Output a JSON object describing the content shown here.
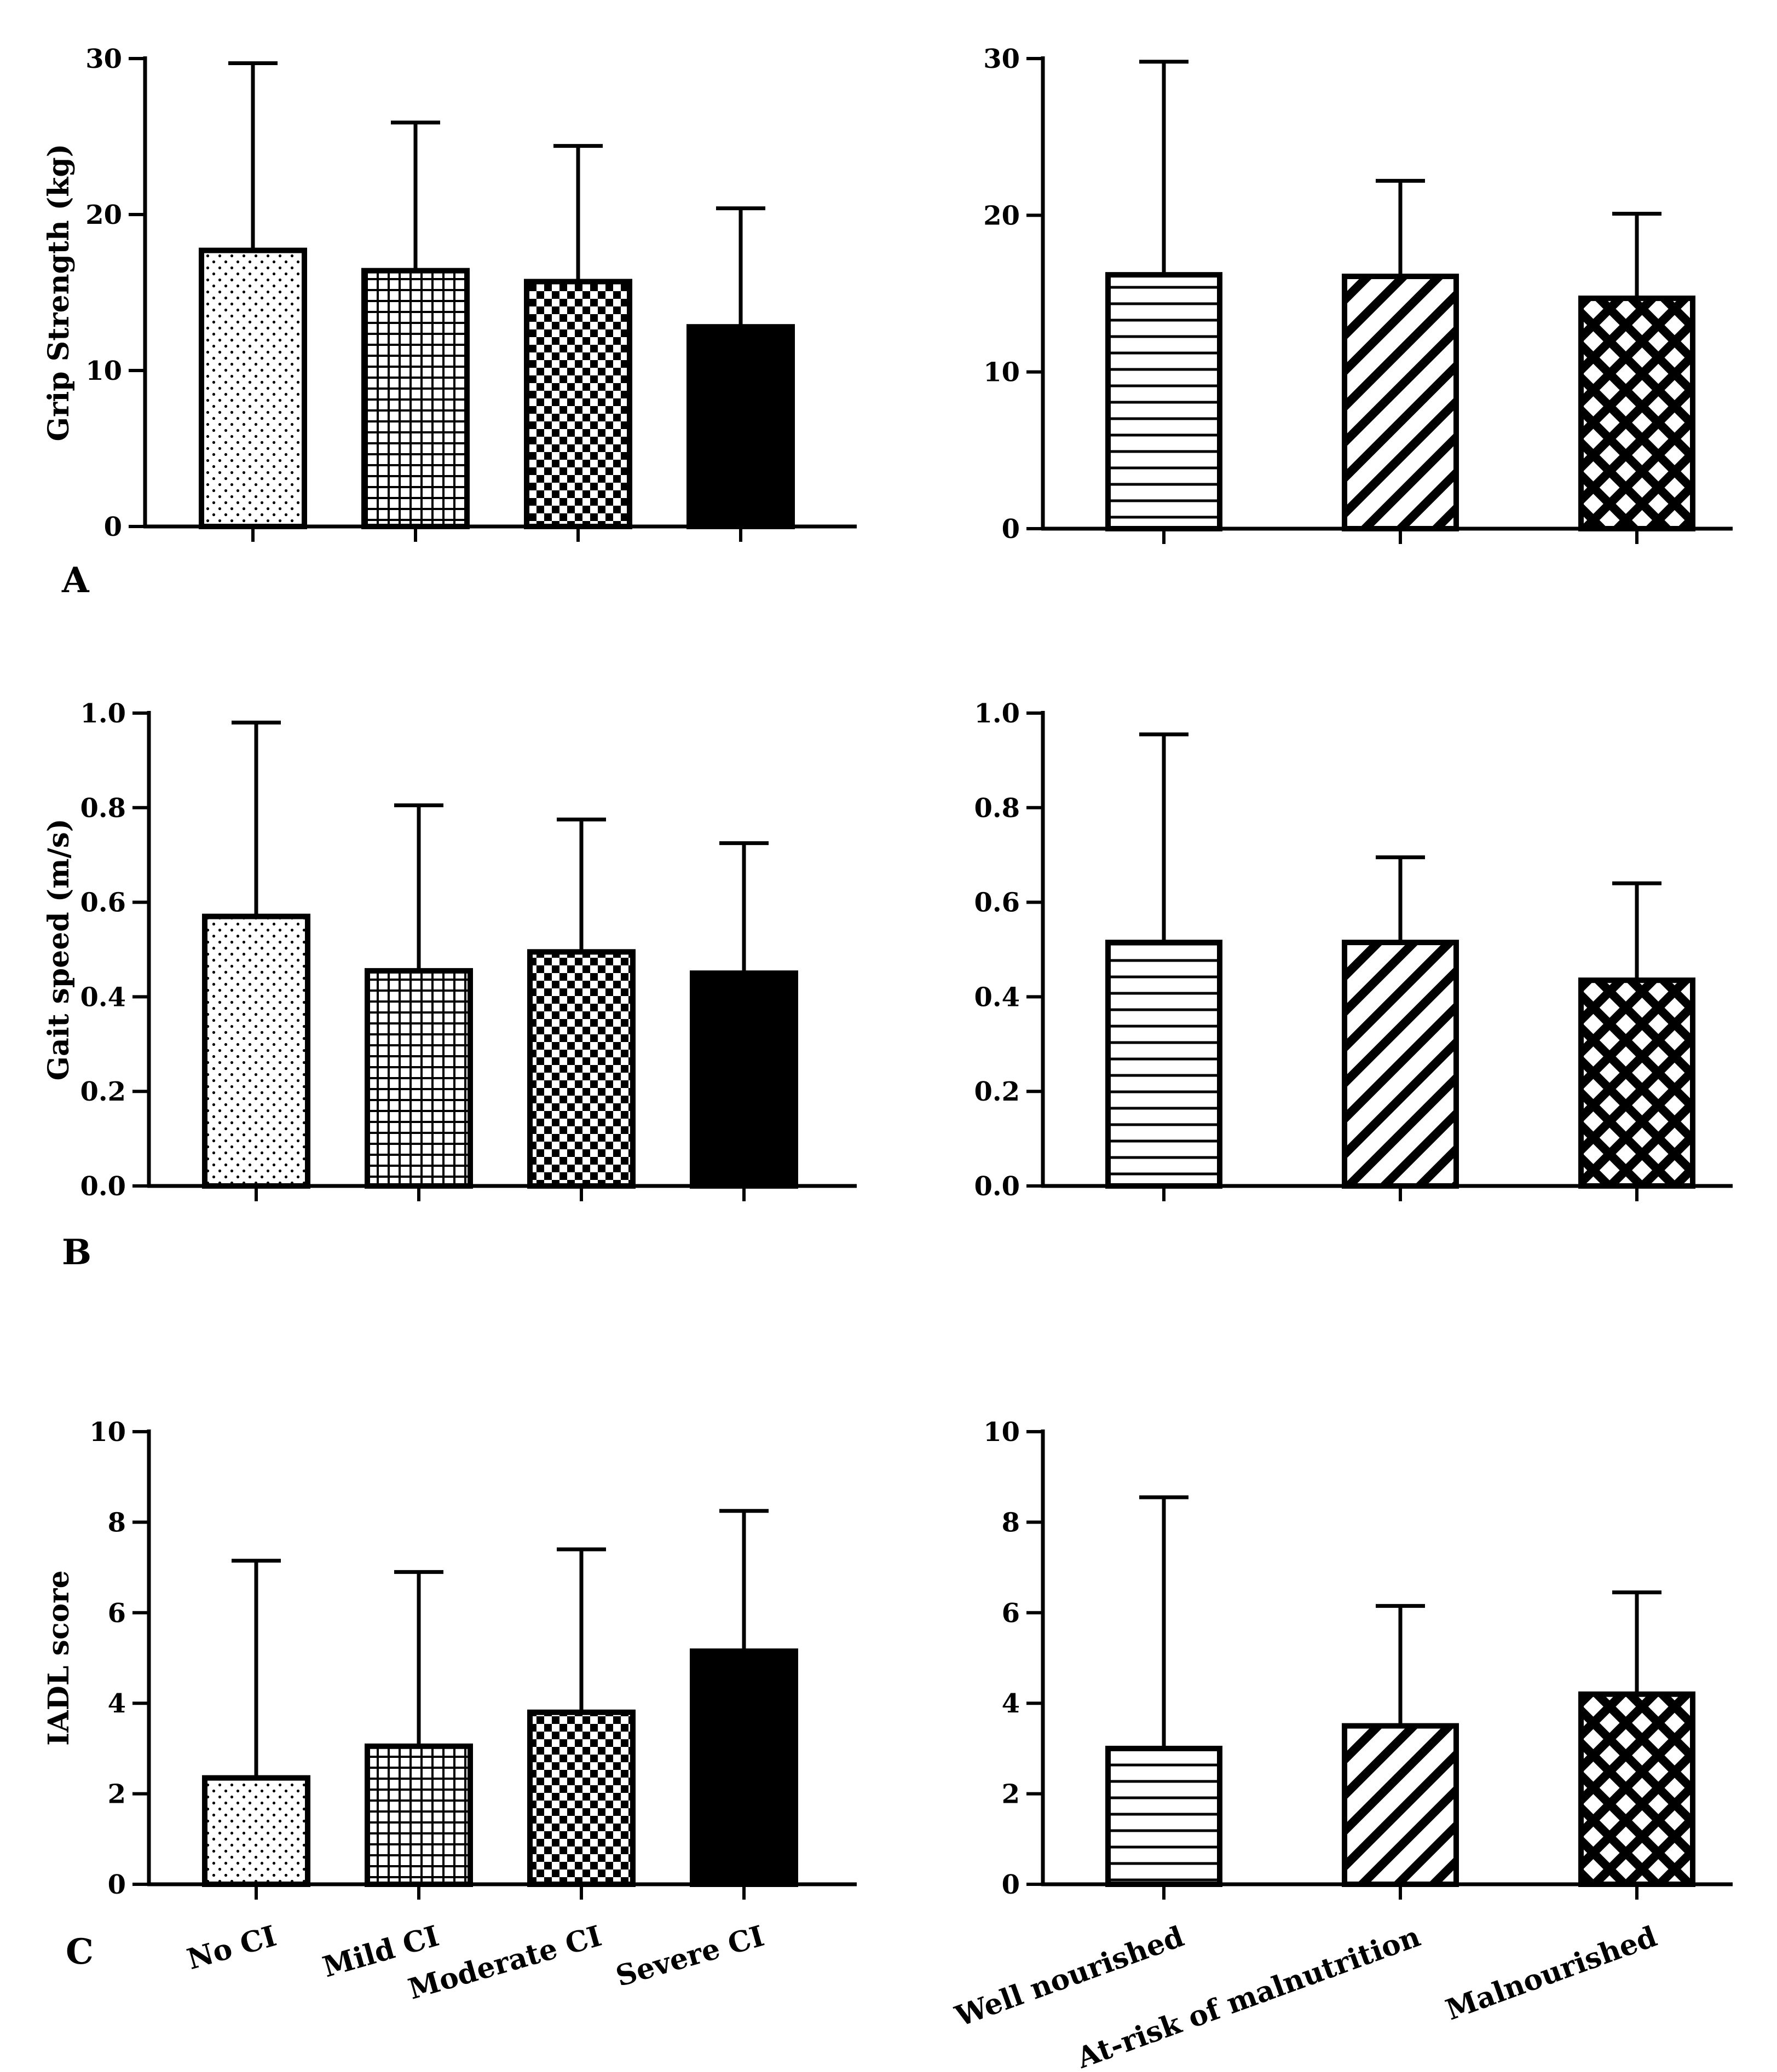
{
  "chart_data": [
    {
      "id": "A-left",
      "type": "bar",
      "ylabel": "Grip Strength (kg)",
      "ylim": [
        0,
        30
      ],
      "yticks": [
        0,
        10,
        20,
        30
      ],
      "ytick_labels": [
        "0",
        "10",
        "20",
        "30"
      ],
      "categories": [
        "No CI",
        "Mild CI",
        "Moderate CI",
        "Severe CI"
      ],
      "show_category_labels": false,
      "patterns": [
        "dots",
        "grid",
        "checker",
        "solid"
      ],
      "values": [
        17.7,
        16.4,
        15.7,
        12.8
      ],
      "errors": [
        12.0,
        9.5,
        8.7,
        7.6
      ]
    },
    {
      "id": "A-right",
      "type": "bar",
      "ylabel": "",
      "ylim": [
        0,
        30
      ],
      "yticks": [
        0,
        10,
        20,
        30
      ],
      "ytick_labels": [
        "0",
        "10",
        "20",
        "30"
      ],
      "categories": [
        "Well nourished",
        "At-risk of malnutrition",
        "Malnourished"
      ],
      "show_category_labels": false,
      "patterns": [
        "hlines",
        "diag",
        "crosshatch"
      ],
      "values": [
        16.2,
        16.1,
        14.7
      ],
      "errors": [
        13.6,
        6.1,
        5.4
      ]
    },
    {
      "id": "B-left",
      "type": "bar",
      "ylabel": "Gait speed (m/s)",
      "ylim": [
        0,
        1.0
      ],
      "yticks": [
        0,
        0.2,
        0.4,
        0.6,
        0.8,
        1.0
      ],
      "ytick_labels": [
        "0.0",
        "0.2",
        "0.4",
        "0.6",
        "0.8",
        "1.0"
      ],
      "categories": [
        "No CI",
        "Mild CI",
        "Moderate CI",
        "Severe CI"
      ],
      "show_category_labels": false,
      "patterns": [
        "dots",
        "grid",
        "checker",
        "solid"
      ],
      "values": [
        0.57,
        0.455,
        0.495,
        0.45
      ],
      "errors": [
        0.41,
        0.35,
        0.28,
        0.275
      ]
    },
    {
      "id": "B-right",
      "type": "bar",
      "ylabel": "",
      "ylim": [
        0,
        1.0
      ],
      "yticks": [
        0,
        0.2,
        0.4,
        0.6,
        0.8,
        1.0
      ],
      "ytick_labels": [
        "0.0",
        "0.2",
        "0.4",
        "0.6",
        "0.8",
        "1.0"
      ],
      "categories": [
        "Well nourished",
        "At-risk of malnutrition",
        "Malnourished"
      ],
      "show_category_labels": false,
      "patterns": [
        "hlines",
        "diag",
        "crosshatch"
      ],
      "values": [
        0.515,
        0.515,
        0.435
      ],
      "errors": [
        0.44,
        0.18,
        0.205
      ]
    },
    {
      "id": "C-left",
      "type": "bar",
      "ylabel": "IADL  score",
      "ylim": [
        0,
        10
      ],
      "yticks": [
        0,
        2,
        4,
        6,
        8,
        10
      ],
      "ytick_labels": [
        "0",
        "2",
        "4",
        "6",
        "8",
        "10"
      ],
      "categories": [
        "No CI",
        "Mild CI",
        "Moderate CI",
        "Severe CI"
      ],
      "show_category_labels": true,
      "patterns": [
        "dots",
        "grid",
        "checker",
        "solid"
      ],
      "values": [
        2.35,
        3.05,
        3.8,
        5.15
      ],
      "errors": [
        4.8,
        3.85,
        3.6,
        3.1
      ]
    },
    {
      "id": "C-right",
      "type": "bar",
      "ylabel": "",
      "ylim": [
        0,
        10
      ],
      "yticks": [
        0,
        2,
        4,
        6,
        8,
        10
      ],
      "ytick_labels": [
        "0",
        "2",
        "4",
        "6",
        "8",
        "10"
      ],
      "categories": [
        "Well nourished",
        "At-risk of malnutrition",
        "Malnourished"
      ],
      "show_category_labels": true,
      "patterns": [
        "hlines",
        "diag",
        "crosshatch"
      ],
      "values": [
        3.0,
        3.5,
        4.2
      ],
      "errors": [
        5.55,
        2.65,
        2.25
      ]
    }
  ],
  "panel_labels": [
    "A",
    "B",
    "C"
  ]
}
